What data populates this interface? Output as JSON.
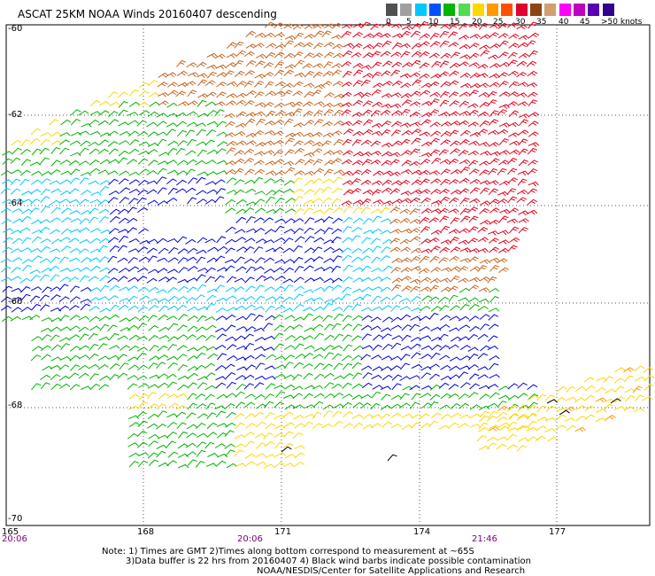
{
  "title": "ASCAT 25KM NOAA Winds 20160407 descending",
  "color_scale": {
    "labels": [
      "0",
      "5",
      "10",
      "15",
      "20",
      "25",
      "30",
      "35",
      "40",
      "45",
      ">50 knots"
    ],
    "colors": [
      "#505050",
      "#a0a0a0",
      "#00c8ff",
      "#0050ff",
      "#00b400",
      "#50dc50",
      "#ffd700",
      "#ff9900",
      "#ff5000",
      "#e00030",
      "#8b4513",
      "#d2a070",
      "#ff00ff",
      "#c000c0",
      "#5a00b4",
      "#30008c"
    ]
  },
  "lat_labels": [
    "-60",
    "-62",
    "-64",
    "-66",
    "-68",
    "-70"
  ],
  "lon_labels": [
    "165",
    "168",
    "171",
    "174",
    "177"
  ],
  "time_labels": [
    "20:06",
    "20:06",
    "21:46"
  ],
  "notes": {
    "line1": "Note: 1) Times are GMT 2)Times along bottom correspond to measurement at ~65S",
    "line2": "3)Data buffer is 22 hrs from 20160407 4) Black wind barbs indicate possible contamination",
    "line3": "NOAA/NESDIS/Center for Satellite Applications and Research"
  },
  "barb_colors": {
    "cyan": "#00c8ff",
    "blue": "#0000e0",
    "green": "#00b400",
    "yellow": "#ffd700",
    "orange": "#ff9900",
    "brown": "#c8641e",
    "red": "#e8001c",
    "black": "#000000"
  }
}
